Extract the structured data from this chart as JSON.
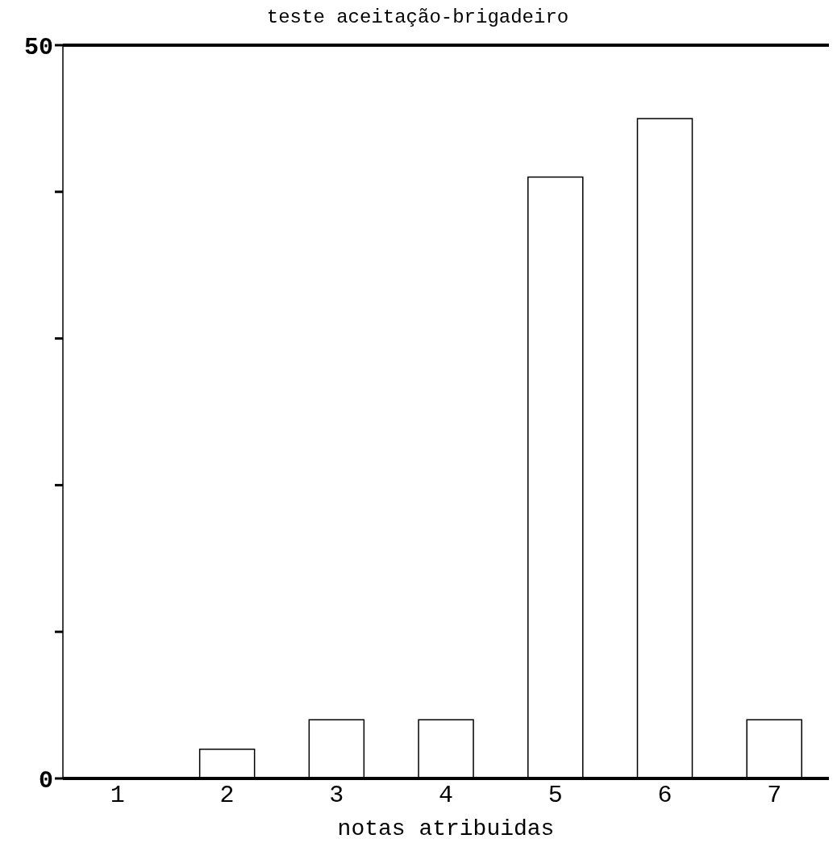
{
  "chart_data": {
    "type": "bar",
    "title": "teste aceitação-brigadeiro",
    "xlabel": "notas atribuidas",
    "categories": [
      "1",
      "2",
      "3",
      "4",
      "5",
      "6",
      "7"
    ],
    "values": [
      0,
      2,
      4,
      4,
      41,
      45,
      4
    ],
    "color": "#ffffff",
    "ylim": [
      0,
      50
    ],
    "yticks": [
      0,
      {
        "value": 10,
        "label": null
      },
      {
        "value": 20,
        "label": null
      },
      {
        "value": 30,
        "label": null
      },
      {
        "value": 40,
        "label": null
      },
      50
    ],
    "grid": false,
    "legend": false
  }
}
